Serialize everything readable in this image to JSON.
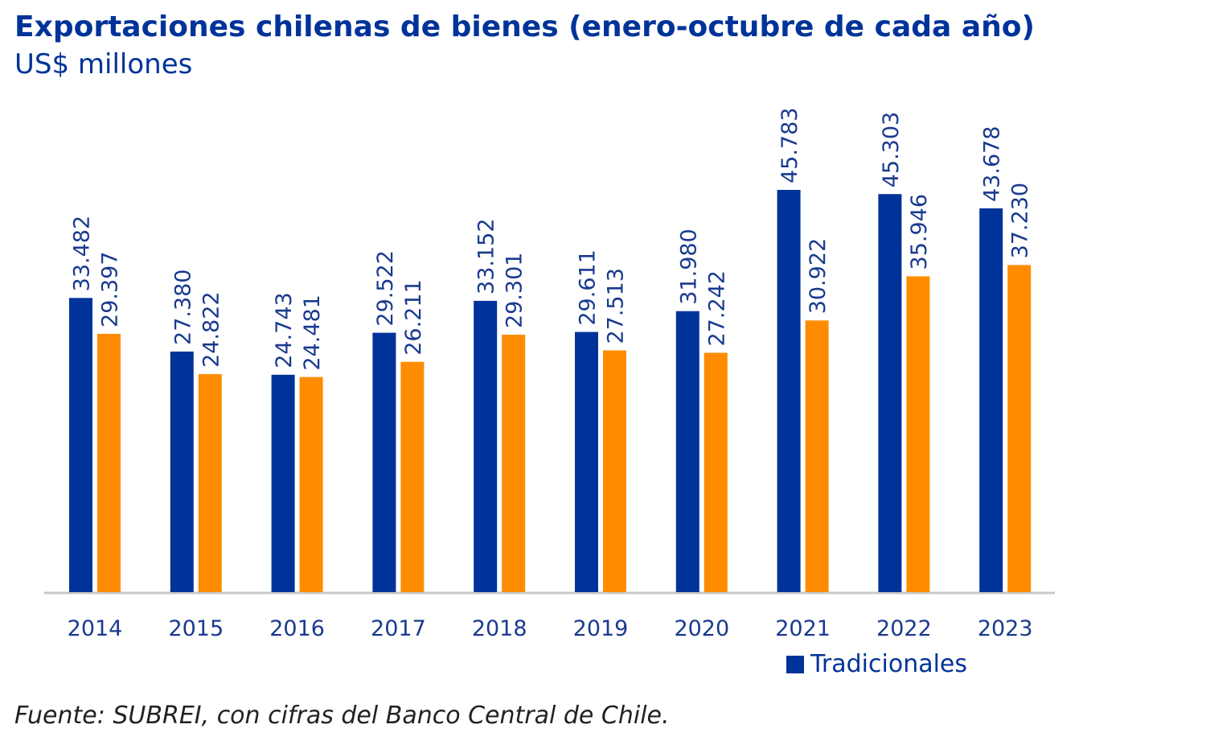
{
  "title": "Exportaciones chilenas de bienes (enero-octubre de cada año)",
  "subtitle": "US$ millones",
  "source": "Fuente: SUBREI, con cifras del Banco Central de Chile.",
  "colors": {
    "title": "#003399",
    "text": "#1a3a8f",
    "axis": "#c8c8c8"
  },
  "legend": {
    "visible_entries": [
      {
        "label": "Tradicionales",
        "color": "#003399"
      }
    ]
  },
  "chart_data": {
    "type": "bar",
    "title": "Exportaciones chilenas de bienes (enero-octubre de cada año)",
    "subtitle": "US$ millones",
    "categories": [
      "2014",
      "2015",
      "2016",
      "2017",
      "2018",
      "2019",
      "2020",
      "2021",
      "2022",
      "2023"
    ],
    "series": [
      {
        "name": "Tradicionales",
        "color": "#003399",
        "values": [
          33482,
          27380,
          24743,
          29522,
          33152,
          29611,
          31980,
          45783,
          45303,
          43678
        ],
        "labels": [
          "33.482",
          "27.380",
          "24.743",
          "29.522",
          "33.152",
          "29.611",
          "31.980",
          "45.783",
          "45.303",
          "43.678"
        ]
      },
      {
        "color": "#ff8c00",
        "values": [
          29397,
          24822,
          24481,
          26211,
          29301,
          27513,
          27242,
          30922,
          35946,
          37230
        ],
        "labels": [
          "29.397",
          "24.822",
          "24.481",
          "26.211",
          "29.301",
          "27.513",
          "27.242",
          "30.922",
          "35.946",
          "37.230"
        ]
      }
    ],
    "ylim": [
      0,
      50000
    ],
    "grid": false,
    "legend_position": "bottom-right"
  }
}
